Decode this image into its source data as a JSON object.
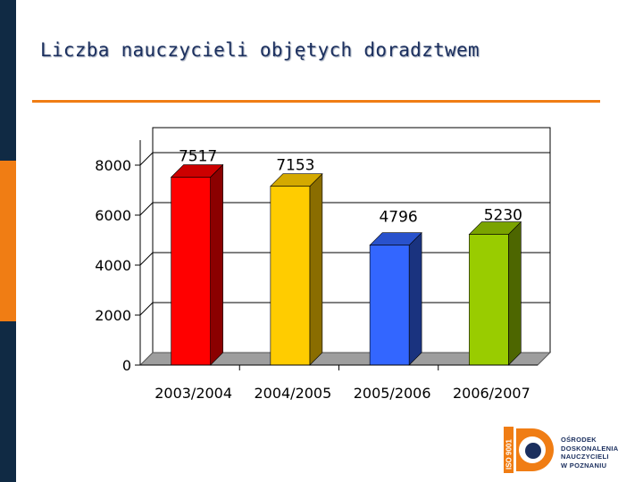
{
  "title": "Liczba nauczycieli objętych doradztwem",
  "colors": {
    "brand_navy": "#102a44",
    "brand_orange": "#f07d14",
    "title": "#1b2f5e",
    "floor": "#9e9e9e"
  },
  "chart_data": {
    "type": "bar",
    "categories": [
      "2003/2004",
      "2004/2005",
      "2005/2006",
      "2006/2007"
    ],
    "values": [
      7517,
      7153,
      4796,
      5230
    ],
    "data_labels": [
      "7517",
      "7153",
      "4796",
      "5230"
    ],
    "bar_colors": [
      {
        "front": "#ff0000",
        "side": "#8b0000",
        "top": "#cc0000"
      },
      {
        "front": "#ffcc00",
        "side": "#8a6d00",
        "top": "#d4a900"
      },
      {
        "front": "#3366ff",
        "side": "#1a337f",
        "top": "#2952cc"
      },
      {
        "front": "#99cc00",
        "side": "#4d6600",
        "top": "#7aa300"
      }
    ],
    "y_ticks": [
      0,
      2000,
      4000,
      6000,
      8000
    ],
    "ylim": [
      0,
      9000
    ],
    "grid": true,
    "style": "3d"
  },
  "logo": {
    "badge": "ISO 9001",
    "lines": [
      "OŚRODEK",
      "DOSKONALENIA",
      "NAUCZYCIELI",
      "W POZNANIU"
    ]
  }
}
